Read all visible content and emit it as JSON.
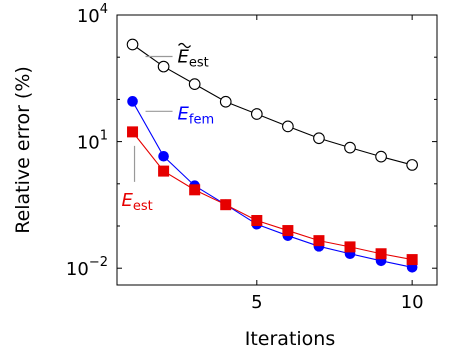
{
  "chart_data": {
    "type": "line",
    "xlabel": "Iterations",
    "ylabel": "Relative error (%)",
    "xlim": [
      0.5,
      10.8
    ],
    "ylim": [
      0.004,
      10000
    ],
    "yscale": "log",
    "grid": false,
    "x_ticks": [
      5,
      10
    ],
    "y_ticks": [
      {
        "value": 0.01,
        "base": "10",
        "exp": "−2"
      },
      {
        "value": 10,
        "base": "10",
        "exp": "1"
      },
      {
        "value": 10000,
        "base": "10",
        "exp": "4"
      }
    ],
    "x": [
      1,
      2,
      3,
      4,
      5,
      6,
      7,
      8,
      9,
      10
    ],
    "series": [
      {
        "name": "E_est_tilde",
        "color": "#000000",
        "marker": "open-circle",
        "values": [
          2000,
          600,
          230,
          88,
          45,
          23,
          12,
          7.2,
          4.4,
          2.8
        ]
      },
      {
        "name": "E_fem",
        "color": "#0000ff",
        "marker": "filled-circle",
        "values": [
          90,
          4.5,
          0.9,
          0.32,
          0.11,
          0.059,
          0.033,
          0.022,
          0.015,
          0.0105
        ]
      },
      {
        "name": "E_est",
        "color": "#e60000",
        "marker": "filled-square",
        "values": [
          17,
          2.0,
          0.72,
          0.32,
          0.135,
          0.078,
          0.045,
          0.032,
          0.022,
          0.016
        ]
      }
    ],
    "annotations": [
      {
        "series": 0,
        "base": "E",
        "sub": "est",
        "tilde": true,
        "color": "#000000"
      },
      {
        "series": 1,
        "base": "E",
        "sub": "fem",
        "tilde": false,
        "color": "#0000ff"
      },
      {
        "series": 2,
        "base": "E",
        "sub": "est",
        "tilde": false,
        "color": "#e60000"
      }
    ]
  }
}
